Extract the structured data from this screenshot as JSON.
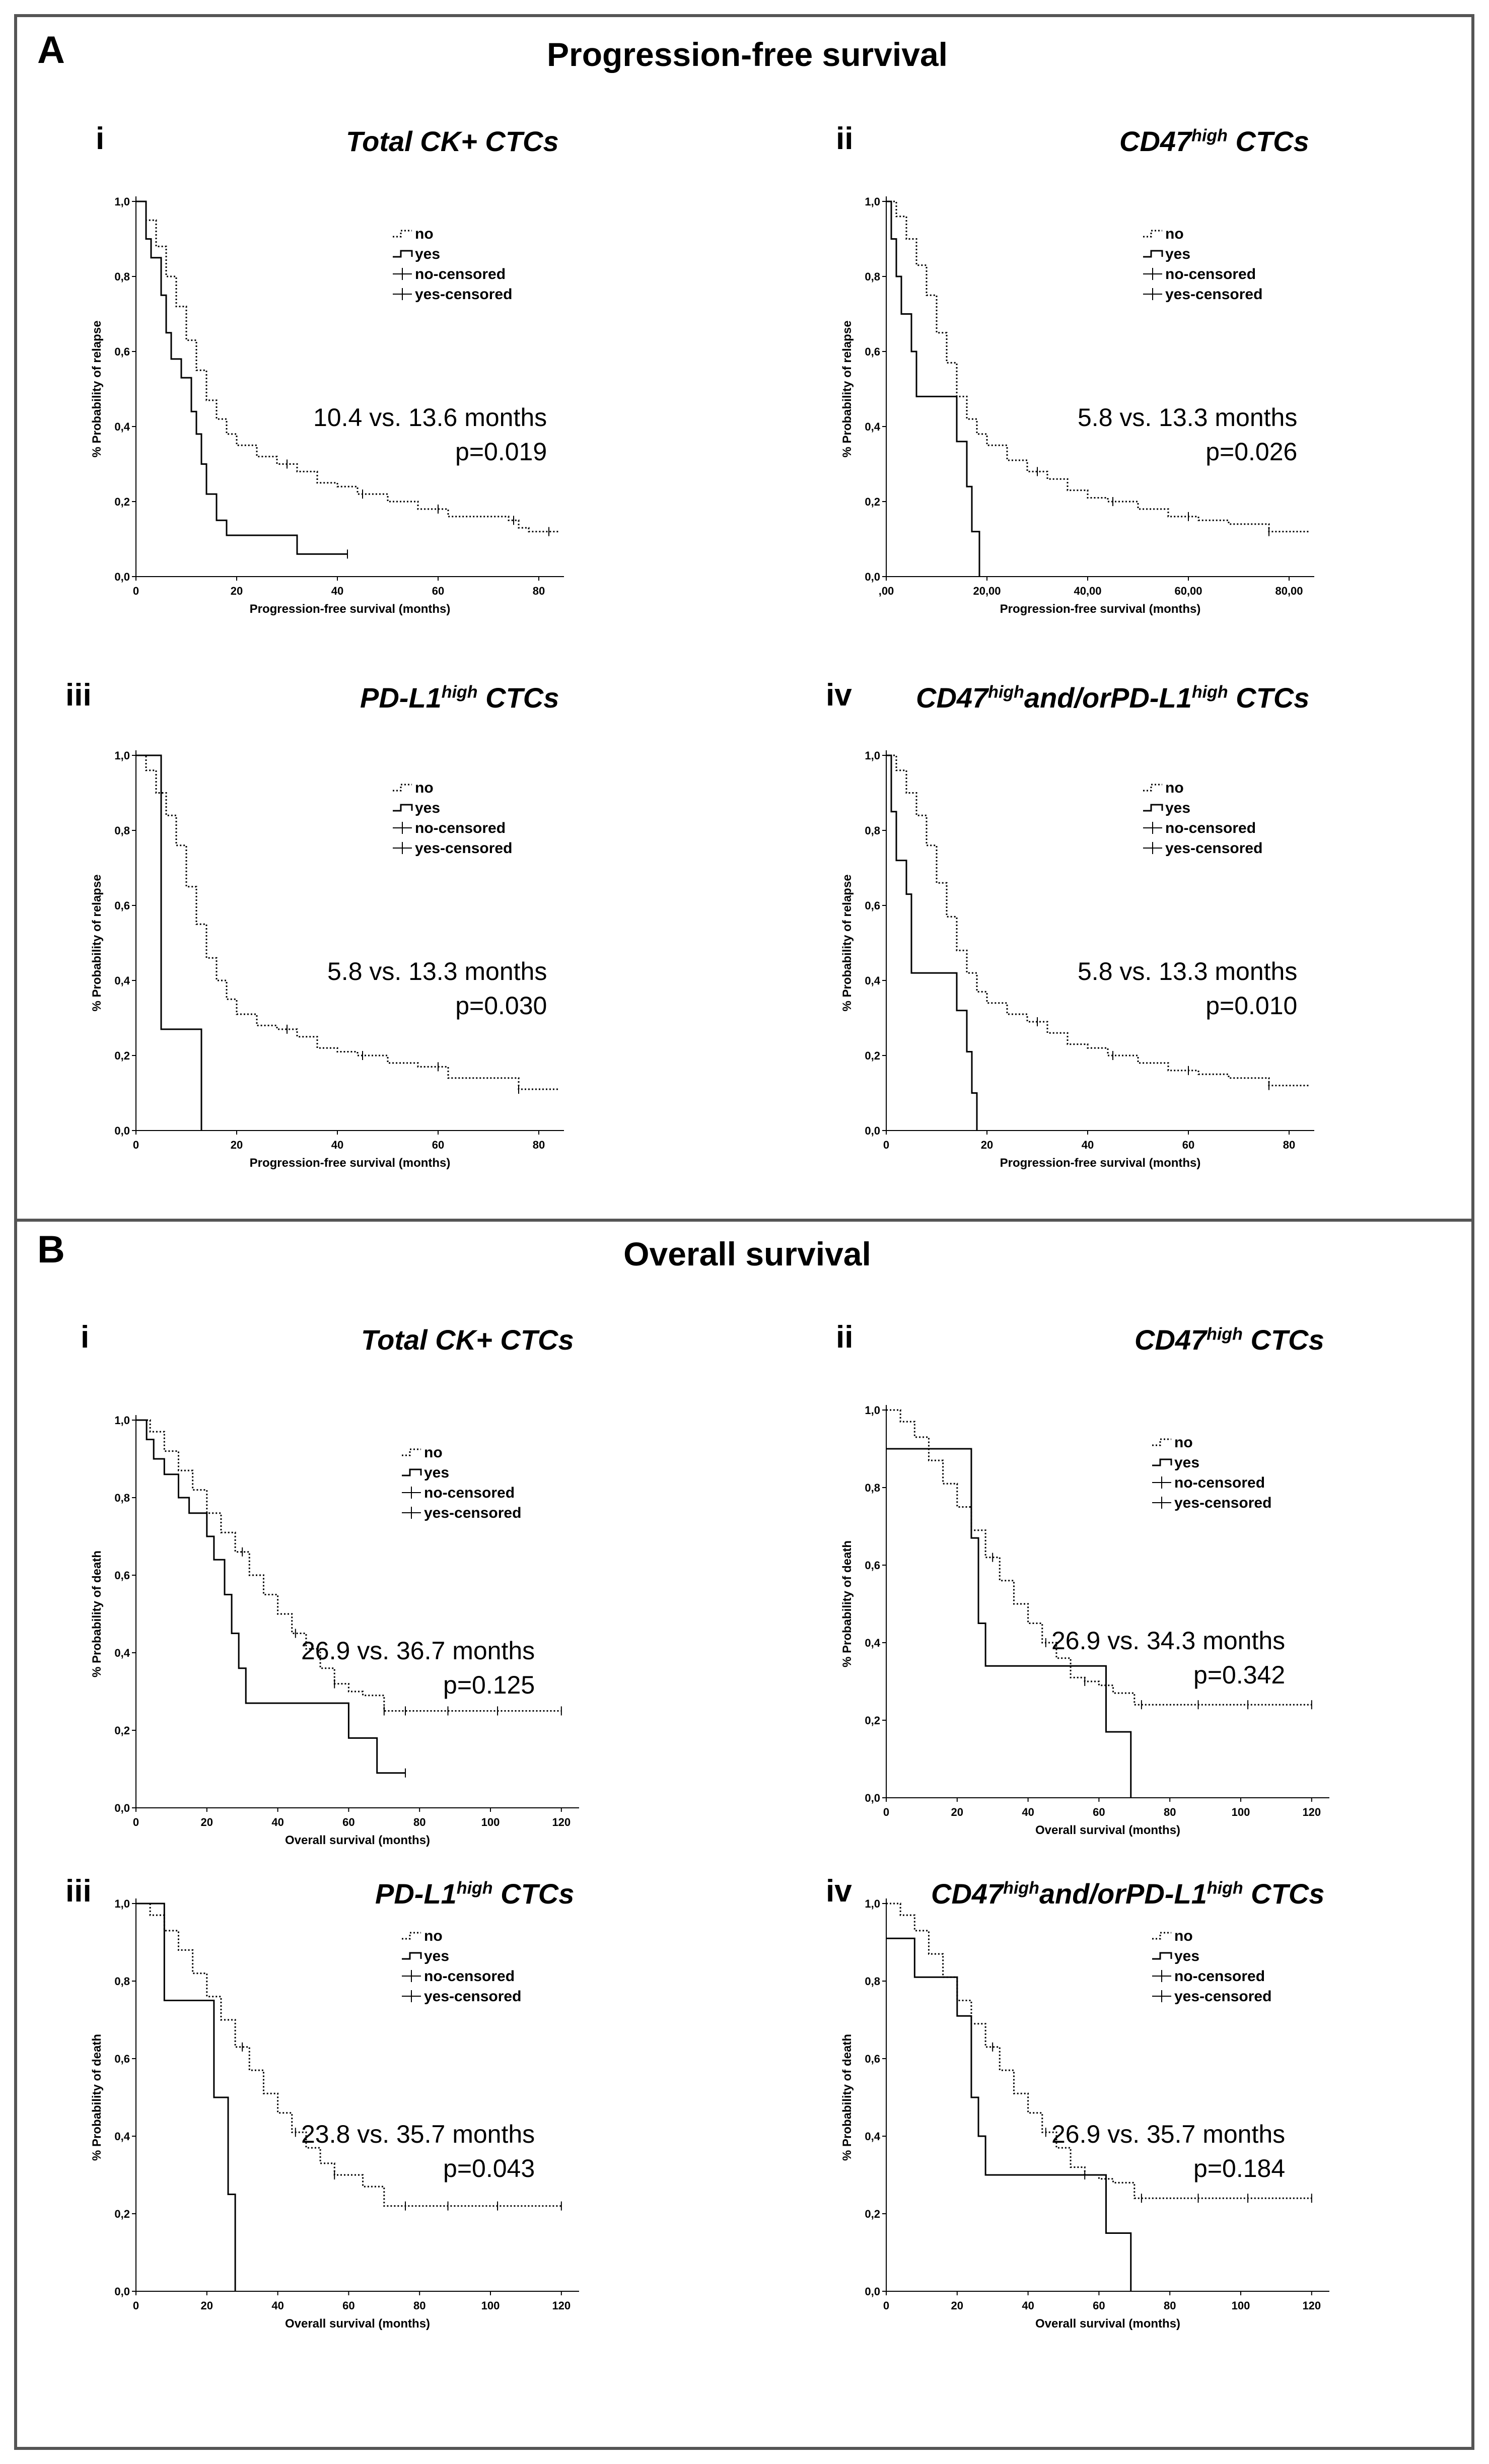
{
  "panels": [
    {
      "letter": "A",
      "title": "Progression-free survival"
    },
    {
      "letter": "B",
      "title": "Overall survival"
    }
  ],
  "legend": {
    "no": "no",
    "yes": "yes",
    "no_censored": "no-censored",
    "yes_censored": "yes-censored"
  },
  "chart_data": [
    {
      "type": "line",
      "panel": "A",
      "roman": "i",
      "title": "Total CK+ CTCs",
      "stat_line1": "10.4 vs. 13.6 months",
      "stat_line2": "p=0.019",
      "xlabel": "Progression-free survival (months)",
      "ylabel": "% Probability of relapse",
      "xlim": [
        0,
        85
      ],
      "ylim": [
        0,
        1.0
      ],
      "xticks": [
        0,
        20,
        40,
        60,
        80
      ],
      "xtick_labels": [
        "0",
        "20",
        "40",
        "60",
        "80"
      ],
      "yticks": [
        0,
        0.2,
        0.4,
        0.6,
        0.8,
        1.0
      ],
      "ytick_labels": [
        "0,0",
        "0,2",
        "0,4",
        "0,6",
        "0,8",
        "1,0"
      ],
      "series": [
        {
          "name": "no",
          "style": "dotted",
          "x": [
            0,
            2,
            4,
            6,
            8,
            10,
            12,
            14,
            16,
            18,
            20,
            24,
            28,
            32,
            36,
            40,
            44,
            50,
            56,
            62,
            68,
            74,
            76,
            78,
            84
          ],
          "y": [
            1.0,
            0.95,
            0.88,
            0.8,
            0.72,
            0.63,
            0.55,
            0.47,
            0.42,
            0.38,
            0.35,
            0.32,
            0.3,
            0.28,
            0.25,
            0.24,
            0.22,
            0.2,
            0.18,
            0.16,
            0.16,
            0.15,
            0.13,
            0.12,
            0.12
          ],
          "censored_x": [
            30,
            45,
            60,
            75,
            82
          ]
        },
        {
          "name": "yes",
          "style": "solid",
          "x": [
            0,
            2,
            3,
            5,
            6,
            7,
            9,
            11,
            12,
            13,
            14,
            16,
            18,
            20,
            32,
            42
          ],
          "y": [
            1.0,
            0.9,
            0.85,
            0.75,
            0.65,
            0.58,
            0.53,
            0.44,
            0.38,
            0.3,
            0.22,
            0.15,
            0.11,
            0.11,
            0.06,
            0.06
          ],
          "censored_x": [
            42
          ]
        }
      ]
    },
    {
      "type": "line",
      "panel": "A",
      "roman": "ii",
      "title": "CD47",
      "title_sup": "high",
      "title_rest": " CTCs",
      "stat_line1": "5.8 vs. 13.3 months",
      "stat_line2": "p=0.026",
      "xlabel": "Progression-free survival (months)",
      "ylabel": "% Probability of relapse",
      "xlim": [
        0,
        85
      ],
      "ylim": [
        0,
        1.0
      ],
      "xticks": [
        0,
        20,
        40,
        60,
        80
      ],
      "xtick_labels": [
        ",00",
        "20,00",
        "40,00",
        "60,00",
        "80,00"
      ],
      "yticks": [
        0,
        0.2,
        0.4,
        0.6,
        0.8,
        1.0
      ],
      "ytick_labels": [
        "0,0",
        "0,2",
        "0,4",
        "0,6",
        "0,8",
        "1,0"
      ],
      "series": [
        {
          "name": "no",
          "style": "dotted",
          "x": [
            0,
            2,
            4,
            6,
            8,
            10,
            12,
            14,
            16,
            18,
            20,
            24,
            28,
            32,
            36,
            40,
            44,
            50,
            56,
            62,
            68,
            74,
            76,
            84
          ],
          "y": [
            1.0,
            0.96,
            0.9,
            0.83,
            0.75,
            0.65,
            0.57,
            0.48,
            0.42,
            0.38,
            0.35,
            0.31,
            0.28,
            0.26,
            0.23,
            0.21,
            0.2,
            0.18,
            0.16,
            0.15,
            0.14,
            0.14,
            0.12,
            0.12
          ],
          "censored_x": [
            30,
            45,
            60,
            76
          ]
        },
        {
          "name": "yes",
          "style": "solid",
          "x": [
            0,
            1,
            2,
            3,
            5,
            6,
            12,
            14,
            16,
            17,
            18,
            18.5
          ],
          "y": [
            1.0,
            0.9,
            0.8,
            0.7,
            0.6,
            0.48,
            0.48,
            0.36,
            0.24,
            0.12,
            0.12,
            0.0
          ],
          "censored_x": []
        }
      ]
    },
    {
      "type": "line",
      "panel": "A",
      "roman": "iii",
      "title": "PD-L1",
      "title_sup": "high",
      "title_rest": " CTCs",
      "stat_line1": "5.8 vs. 13.3 months",
      "stat_line2": "p=0.030",
      "xlabel": "Progression-free survival (months)",
      "ylabel": "% Probability of relapse",
      "xlim": [
        0,
        85
      ],
      "ylim": [
        0,
        1.0
      ],
      "xticks": [
        0,
        20,
        40,
        60,
        80
      ],
      "xtick_labels": [
        "0",
        "20",
        "40",
        "60",
        "80"
      ],
      "yticks": [
        0,
        0.2,
        0.4,
        0.6,
        0.8,
        1.0
      ],
      "ytick_labels": [
        "0,0",
        "0,2",
        "0,4",
        "0,6",
        "0,8",
        "1,0"
      ],
      "series": [
        {
          "name": "no",
          "style": "dotted",
          "x": [
            0,
            2,
            4,
            6,
            8,
            10,
            12,
            14,
            16,
            18,
            20,
            24,
            28,
            32,
            36,
            40,
            44,
            50,
            56,
            62,
            68,
            74,
            76,
            84
          ],
          "y": [
            1.0,
            0.96,
            0.9,
            0.84,
            0.76,
            0.65,
            0.55,
            0.46,
            0.4,
            0.35,
            0.31,
            0.28,
            0.27,
            0.25,
            0.22,
            0.21,
            0.2,
            0.18,
            0.17,
            0.14,
            0.14,
            0.14,
            0.11,
            0.11
          ],
          "censored_x": [
            30,
            45,
            60,
            76
          ]
        },
        {
          "name": "yes",
          "style": "solid",
          "x": [
            0,
            5,
            5,
            13,
            13
          ],
          "y": [
            1.0,
            1.0,
            0.27,
            0.27,
            0.0
          ],
          "censored_x": []
        }
      ]
    },
    {
      "type": "line",
      "panel": "A",
      "roman": "iv",
      "title": "CD47",
      "title_sup": "high",
      "title_rest": "and/orPD-L1",
      "title_sup2": "high",
      "title_rest2": " CTCs",
      "stat_line1": "5.8 vs. 13.3 months",
      "stat_line2": "p=0.010",
      "xlabel": "Progression-free survival (months)",
      "ylabel": "% Probability of relapse",
      "xlim": [
        0,
        85
      ],
      "ylim": [
        0,
        1.0
      ],
      "xticks": [
        0,
        20,
        40,
        60,
        80
      ],
      "xtick_labels": [
        "0",
        "20",
        "40",
        "60",
        "80"
      ],
      "yticks": [
        0,
        0.2,
        0.4,
        0.6,
        0.8,
        1.0
      ],
      "ytick_labels": [
        "0,0",
        "0,2",
        "0,4",
        "0,6",
        "0,8",
        "1,0"
      ],
      "series": [
        {
          "name": "no",
          "style": "dotted",
          "x": [
            0,
            2,
            4,
            6,
            8,
            10,
            12,
            14,
            16,
            18,
            20,
            24,
            28,
            32,
            36,
            40,
            44,
            50,
            56,
            62,
            68,
            74,
            76,
            84
          ],
          "y": [
            1.0,
            0.96,
            0.9,
            0.84,
            0.76,
            0.66,
            0.57,
            0.48,
            0.42,
            0.37,
            0.34,
            0.31,
            0.29,
            0.26,
            0.23,
            0.22,
            0.2,
            0.18,
            0.16,
            0.15,
            0.14,
            0.14,
            0.12,
            0.12
          ],
          "censored_x": [
            30,
            45,
            60,
            76
          ]
        },
        {
          "name": "yes",
          "style": "solid",
          "x": [
            0,
            1,
            2,
            4,
            5,
            12,
            14,
            16,
            17,
            18
          ],
          "y": [
            1.0,
            0.85,
            0.72,
            0.63,
            0.42,
            0.42,
            0.32,
            0.21,
            0.1,
            0.0
          ],
          "censored_x": []
        }
      ]
    },
    {
      "type": "line",
      "panel": "B",
      "roman": "i",
      "title": "Total CK+ CTCs",
      "stat_line1": "26.9 vs. 36.7 months",
      "stat_line2": "p=0.125",
      "xlabel": "Overall survival (months)",
      "ylabel": "% Probability of death",
      "xlim": [
        0,
        125
      ],
      "ylim": [
        0,
        1.0
      ],
      "xticks": [
        0,
        20,
        40,
        60,
        80,
        100,
        120
      ],
      "xtick_labels": [
        "0",
        "20",
        "40",
        "60",
        "80",
        "100",
        "120"
      ],
      "yticks": [
        0,
        0.2,
        0.4,
        0.6,
        0.8,
        1.0
      ],
      "ytick_labels": [
        "0,0",
        "0,2",
        "0,4",
        "0,6",
        "0,8",
        "1,0"
      ],
      "series": [
        {
          "name": "no",
          "style": "dotted",
          "x": [
            0,
            4,
            8,
            12,
            16,
            20,
            24,
            28,
            32,
            36,
            40,
            44,
            48,
            52,
            56,
            60,
            64,
            70,
            76,
            120
          ],
          "y": [
            1.0,
            0.97,
            0.92,
            0.87,
            0.82,
            0.76,
            0.71,
            0.66,
            0.6,
            0.55,
            0.5,
            0.45,
            0.41,
            0.36,
            0.32,
            0.3,
            0.29,
            0.25,
            0.25,
            0.25
          ],
          "censored_x": [
            30,
            45,
            56,
            70,
            76,
            88,
            102,
            120
          ]
        },
        {
          "name": "yes",
          "style": "solid",
          "x": [
            0,
            3,
            5,
            8,
            12,
            15,
            20,
            22,
            25,
            27,
            29,
            31,
            33,
            55,
            60,
            65,
            68,
            75,
            76
          ],
          "y": [
            1.0,
            0.95,
            0.9,
            0.86,
            0.8,
            0.76,
            0.7,
            0.64,
            0.55,
            0.45,
            0.36,
            0.27,
            0.27,
            0.27,
            0.18,
            0.18,
            0.09,
            0.09,
            0.09
          ],
          "censored_x": [
            76
          ]
        }
      ]
    },
    {
      "type": "line",
      "panel": "B",
      "roman": "ii",
      "title": "CD47",
      "title_sup": "high",
      "title_rest": " CTCs",
      "stat_line1": "26.9 vs. 34.3 months",
      "stat_line2": "p=0.342",
      "xlabel": "Overall survival (months)",
      "ylabel": "% Probability of death",
      "xlim": [
        0,
        125
      ],
      "ylim": [
        0,
        1.0
      ],
      "xticks": [
        0,
        20,
        40,
        60,
        80,
        100,
        120
      ],
      "xtick_labels": [
        "0",
        "20",
        "40",
        "60",
        "80",
        "100",
        "120"
      ],
      "yticks": [
        0,
        0.2,
        0.4,
        0.6,
        0.8,
        1.0
      ],
      "ytick_labels": [
        "0,0",
        "0,2",
        "0,4",
        "0,6",
        "0,8",
        "1,0"
      ],
      "series": [
        {
          "name": "no",
          "style": "dotted",
          "x": [
            0,
            4,
            8,
            12,
            16,
            20,
            24,
            28,
            32,
            36,
            40,
            44,
            48,
            52,
            56,
            60,
            64,
            70,
            120
          ],
          "y": [
            1.0,
            0.97,
            0.93,
            0.87,
            0.81,
            0.75,
            0.69,
            0.62,
            0.56,
            0.5,
            0.45,
            0.4,
            0.36,
            0.31,
            0.3,
            0.29,
            0.27,
            0.24,
            0.24
          ],
          "censored_x": [
            30,
            45,
            56,
            72,
            88,
            102,
            120
          ]
        },
        {
          "name": "yes",
          "style": "solid",
          "x": [
            0,
            22,
            24,
            26,
            28,
            60,
            62,
            68,
            69
          ],
          "y": [
            0.9,
            0.9,
            0.67,
            0.45,
            0.34,
            0.34,
            0.17,
            0.17,
            0.0
          ],
          "censored_x": []
        }
      ]
    },
    {
      "type": "line",
      "panel": "B",
      "roman": "iii",
      "title": "PD-L1",
      "title_sup": "high",
      "title_rest": " CTCs",
      "stat_line1": "23.8 vs. 35.7 months",
      "stat_line2": "p=0.043",
      "xlabel": "Overall survival (months)",
      "ylabel": "% Probability of death",
      "xlim": [
        0,
        125
      ],
      "ylim": [
        0,
        1.0
      ],
      "xticks": [
        0,
        20,
        40,
        60,
        80,
        100,
        120
      ],
      "xtick_labels": [
        "0",
        "20",
        "40",
        "60",
        "80",
        "100",
        "120"
      ],
      "yticks": [
        0,
        0.2,
        0.4,
        0.6,
        0.8,
        1.0
      ],
      "ytick_labels": [
        "0,0",
        "0,2",
        "0,4",
        "0,6",
        "0,8",
        "1,0"
      ],
      "series": [
        {
          "name": "no",
          "style": "dotted",
          "x": [
            0,
            4,
            8,
            12,
            16,
            20,
            24,
            28,
            32,
            36,
            40,
            44,
            48,
            52,
            56,
            60,
            64,
            70,
            74,
            120
          ],
          "y": [
            1.0,
            0.97,
            0.93,
            0.88,
            0.82,
            0.76,
            0.7,
            0.63,
            0.57,
            0.51,
            0.46,
            0.41,
            0.37,
            0.33,
            0.3,
            0.3,
            0.27,
            0.22,
            0.22,
            0.22
          ],
          "censored_x": [
            30,
            45,
            56,
            76,
            88,
            102,
            120
          ]
        },
        {
          "name": "yes",
          "style": "solid",
          "x": [
            0,
            8,
            8,
            18,
            22,
            26,
            28,
            28
          ],
          "y": [
            1.0,
            1.0,
            0.75,
            0.75,
            0.5,
            0.25,
            0.25,
            0.0
          ],
          "censored_x": []
        }
      ]
    },
    {
      "type": "line",
      "panel": "B",
      "roman": "iv",
      "title": "CD47",
      "title_sup": "high",
      "title_rest": "and/orPD-L1",
      "title_sup2": "high",
      "title_rest2": " CTCs",
      "stat_line1": "26.9 vs. 35.7 months",
      "stat_line2": "p=0.184",
      "xlabel": "Overall survival (months)",
      "ylabel": "% Probability of death",
      "xlim": [
        0,
        125
      ],
      "ylim": [
        0,
        1.0
      ],
      "xticks": [
        0,
        20,
        40,
        60,
        80,
        100,
        120
      ],
      "xtick_labels": [
        "0",
        "20",
        "40",
        "60",
        "80",
        "100",
        "120"
      ],
      "yticks": [
        0,
        0.2,
        0.4,
        0.6,
        0.8,
        1.0
      ],
      "ytick_labels": [
        "0,0",
        "0,2",
        "0,4",
        "0,6",
        "0,8",
        "1,0"
      ],
      "series": [
        {
          "name": "no",
          "style": "dotted",
          "x": [
            0,
            4,
            8,
            12,
            16,
            20,
            24,
            28,
            32,
            36,
            40,
            44,
            48,
            52,
            56,
            60,
            64,
            70,
            120
          ],
          "y": [
            1.0,
            0.97,
            0.93,
            0.87,
            0.81,
            0.75,
            0.69,
            0.63,
            0.57,
            0.51,
            0.46,
            0.41,
            0.37,
            0.32,
            0.3,
            0.29,
            0.28,
            0.24,
            0.24
          ],
          "censored_x": [
            30,
            45,
            56,
            72,
            88,
            102,
            120
          ]
        },
        {
          "name": "yes",
          "style": "solid",
          "x": [
            0,
            4,
            8,
            16,
            20,
            24,
            26,
            28,
            60,
            62,
            68,
            69
          ],
          "y": [
            0.91,
            0.91,
            0.81,
            0.81,
            0.71,
            0.5,
            0.4,
            0.3,
            0.3,
            0.15,
            0.15,
            0.0
          ],
          "censored_x": []
        }
      ]
    }
  ]
}
